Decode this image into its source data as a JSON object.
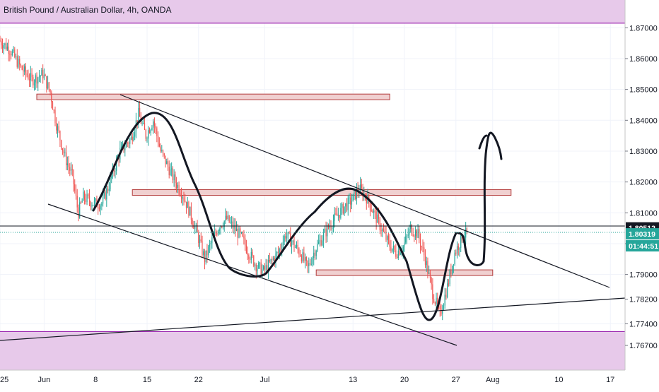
{
  "chart_data": {
    "type": "candlestick",
    "title": "British Pound / Australian Dollar, 4h, OANDA",
    "price_axis": {
      "ticks": [
        "1.87000",
        "1.86000",
        "1.85000",
        "1.84000",
        "1.83000",
        "1.82000",
        "1.81000",
        "1.80000",
        "1.79000",
        "1.78200",
        "1.77400",
        "1.76700"
      ],
      "tick_values": [
        1.87,
        1.86,
        1.85,
        1.84,
        1.83,
        1.82,
        1.81,
        1.8,
        1.79,
        1.782,
        1.774,
        1.767
      ],
      "range": [
        1.759,
        1.879
      ]
    },
    "time_axis": {
      "labels": [
        "25",
        "Jun",
        "8",
        "15",
        "22",
        "Jul",
        "13",
        "20",
        "27",
        "Aug",
        "10",
        "17"
      ],
      "range_days": [
        -6,
        79
      ]
    },
    "price_labels": [
      {
        "text": "1.80512",
        "value": 1.80512,
        "color": "#131722"
      },
      {
        "text": "1.80319",
        "value": 1.80319,
        "color": "#26a69a"
      },
      {
        "text": "01:44:51",
        "color": "#26a69a"
      }
    ],
    "colors": {
      "up": "#26a69a",
      "down": "#ef5350",
      "zone_fill": "#e7c9ea",
      "zone_border": "#9c27b0",
      "box_fill": "#f0d0d0",
      "box_border": "#b23a3a"
    },
    "candles_path": [
      [
        -6,
        1.866
      ],
      [
        -4.5,
        1.863
      ],
      [
        -3,
        1.857
      ],
      [
        -1.5,
        1.853
      ],
      [
        0,
        1.855
      ],
      [
        1,
        1.849
      ],
      [
        1.8,
        1.839
      ],
      [
        3,
        1.828
      ],
      [
        4,
        1.822
      ],
      [
        4.8,
        1.81
      ],
      [
        5.5,
        1.815
      ],
      [
        7,
        1.813
      ],
      [
        8,
        1.813
      ],
      [
        9,
        1.819
      ],
      [
        10.5,
        1.83
      ],
      [
        12,
        1.834
      ],
      [
        13,
        1.842
      ],
      [
        14,
        1.835
      ],
      [
        15,
        1.84
      ],
      [
        16,
        1.83
      ],
      [
        17,
        1.825
      ],
      [
        18,
        1.82
      ],
      [
        19,
        1.816
      ],
      [
        20,
        1.81
      ],
      [
        21,
        1.803
      ],
      [
        22,
        1.795
      ],
      [
        23,
        1.801
      ],
      [
        24,
        1.806
      ],
      [
        25,
        1.808
      ],
      [
        26,
        1.805
      ],
      [
        27,
        1.802
      ],
      [
        28,
        1.797
      ],
      [
        29,
        1.793
      ],
      [
        30,
        1.791
      ],
      [
        31,
        1.794
      ],
      [
        32,
        1.797
      ],
      [
        33,
        1.803
      ],
      [
        34,
        1.8
      ],
      [
        35,
        1.797
      ],
      [
        36,
        1.792
      ],
      [
        37,
        1.798
      ],
      [
        38,
        1.802
      ],
      [
        39,
        1.806
      ],
      [
        40,
        1.809
      ],
      [
        41,
        1.812
      ],
      [
        42,
        1.814
      ],
      [
        43,
        1.818
      ],
      [
        44,
        1.815
      ],
      [
        45,
        1.81
      ],
      [
        46,
        1.805
      ],
      [
        47,
        1.8
      ],
      [
        48,
        1.797
      ],
      [
        49,
        1.799
      ],
      [
        50,
        1.805
      ],
      [
        51,
        1.803
      ],
      [
        52,
        1.795
      ],
      [
        53,
        1.784
      ],
      [
        54,
        1.777
      ],
      [
        55,
        1.786
      ],
      [
        56,
        1.797
      ],
      [
        57,
        1.802
      ],
      [
        57.6,
        1.8035
      ]
    ],
    "annotations": {
      "resistance_boxes": [
        {
          "day_from": -1,
          "day_to": 47,
          "price_from": 1.8475,
          "price_to": 1.8485
        },
        {
          "day_from": 12,
          "day_to": 63.5,
          "price_from": 1.8165,
          "price_to": 1.8175
        },
        {
          "day_from": 37,
          "day_to": 61,
          "price_from": 1.7905,
          "price_to": 1.7915
        }
      ],
      "zones": [
        {
          "price_from": 1.8715,
          "price_to": 1.879
        },
        {
          "price_from": 1.759,
          "price_to": 1.7715
        }
      ]
    }
  }
}
